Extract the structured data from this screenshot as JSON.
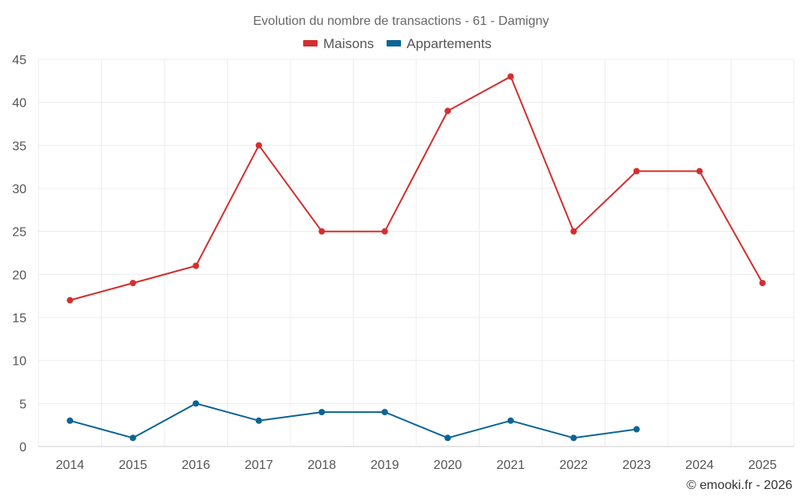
{
  "chart_data": {
    "type": "line",
    "title": "Evolution du nombre de transactions - 61 - Damigny",
    "categories": [
      "2014",
      "2015",
      "2016",
      "2017",
      "2018",
      "2019",
      "2020",
      "2021",
      "2022",
      "2023",
      "2024",
      "2025"
    ],
    "series": [
      {
        "name": "Maisons",
        "color": "#d32f2f",
        "values": [
          17,
          19,
          21,
          35,
          25,
          25,
          39,
          43,
          25,
          32,
          32,
          19
        ]
      },
      {
        "name": "Appartements",
        "color": "#0b6496",
        "values": [
          3,
          1,
          5,
          3,
          4,
          4,
          1,
          3,
          1,
          2,
          null,
          null
        ]
      }
    ],
    "ylim": [
      0,
      45
    ],
    "yticks": [
      0,
      5,
      10,
      15,
      20,
      25,
      30,
      35,
      40,
      45
    ],
    "grid": true,
    "legend": "top-center"
  },
  "credit": "© emooki.fr - 2026"
}
